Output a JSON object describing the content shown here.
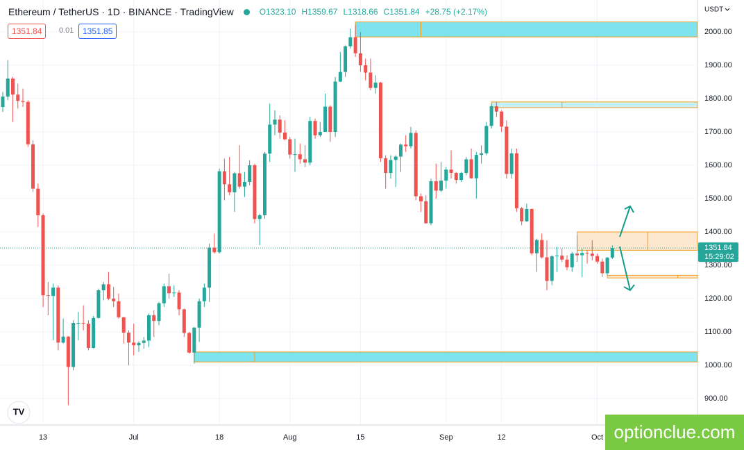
{
  "header": {
    "symbol": "Ethereum / TetherUS · 1D · BINANCE · TradingView",
    "ohlc": [
      "O1323.10",
      "H1359.67",
      "L1318.66",
      "C1351.84"
    ],
    "change": "+28.75 (+2.17%)"
  },
  "trade": {
    "sell": "1351.84",
    "spread": "0.01",
    "buy": "1351.85"
  },
  "axis": {
    "currency": "USDT",
    "price_label": "1351.84",
    "countdown": "15:29:02"
  },
  "watermark": "optionclue.com",
  "chart_data": {
    "type": "candlestick",
    "open": [
      1775,
      1806,
      1860,
      1812,
      1793,
      1790,
      1663,
      1530,
      1450,
      1210,
      1208,
      1233,
      1068,
      1086,
      995,
      1127,
      1127,
      1125,
      1052,
      1142,
      1225,
      1243,
      1200,
      1192,
      1144,
      1098,
      1068,
      1060,
      1067,
      1074,
      1150,
      1133,
      1186,
      1237,
      1216,
      1218,
      1168,
      1097,
      1038,
      1113,
      1192,
      1233,
      1353,
      1339,
      1582,
      1543,
      1519,
      1576,
      1536,
      1550,
      1600,
      1439,
      1450,
      1635,
      1722,
      1737,
      1698,
      1678,
      1632,
      1633,
      1618,
      1608,
      1733,
      1690,
      1700,
      1776,
      1700,
      1851,
      1880,
      1957,
      1984,
      1936,
      1900,
      1878,
      1832,
      1848,
      1621,
      1577,
      1616,
      1626,
      1662,
      1657,
      1697,
      1507,
      1492,
      1426,
      1552,
      1524,
      1554,
      1587,
      1577,
      1556,
      1577,
      1618,
      1561,
      1631,
      1636,
      1718,
      1777,
      1761,
      1716,
      1574,
      1636,
      1471,
      1432,
      1469,
      1336,
      1376,
      1324,
      1253,
      1327,
      1329,
      1317,
      1294,
      1335,
      1330,
      1337,
      1335,
      1328,
      1311,
      1276,
      1323.1
    ],
    "high": [
      1820,
      1915,
      1865,
      1845,
      1830,
      1795,
      1675,
      1545,
      1455,
      1250,
      1245,
      1240,
      1140,
      1088,
      1135,
      1160,
      1180,
      1135,
      1148,
      1230,
      1250,
      1280,
      1235,
      1215,
      1145,
      1105,
      1125,
      1072,
      1085,
      1155,
      1165,
      1190,
      1245,
      1275,
      1240,
      1225,
      1170,
      1100,
      1115,
      1200,
      1245,
      1365,
      1395,
      1590,
      1620,
      1625,
      1580,
      1660,
      1580,
      1615,
      1605,
      1455,
      1640,
      1785,
      1765,
      1750,
      1735,
      1685,
      1680,
      1665,
      1660,
      1745,
      1740,
      1730,
      1815,
      1780,
      1865,
      1940,
      1960,
      2010,
      2020,
      2000,
      1920,
      1920,
      1870,
      1850,
      1630,
      1630,
      1630,
      1665,
      1690,
      1715,
      1705,
      1515,
      1510,
      1560,
      1605,
      1610,
      1595,
      1645,
      1580,
      1580,
      1625,
      1650,
      1640,
      1660,
      1730,
      1785,
      1790,
      1765,
      1735,
      1650,
      1650,
      1475,
      1485,
      1470,
      1380,
      1395,
      1375,
      1330,
      1355,
      1350,
      1330,
      1340,
      1390,
      1350,
      1345,
      1375,
      1335,
      1320,
      1325,
      1359.67
    ],
    "low": [
      1760,
      1795,
      1730,
      1770,
      1775,
      1655,
      1520,
      1415,
      1175,
      1150,
      1075,
      1045,
      1065,
      880,
      985,
      1075,
      1105,
      1045,
      1050,
      1140,
      1195,
      1195,
      1175,
      1140,
      1065,
      1000,
      1030,
      1040,
      1050,
      1055,
      1085,
      1120,
      1175,
      1200,
      1205,
      1150,
      1085,
      1035,
      1005,
      1070,
      1175,
      1190,
      1335,
      1335,
      1495,
      1510,
      1460,
      1530,
      1505,
      1540,
      1425,
      1360,
      1440,
      1610,
      1690,
      1680,
      1675,
      1620,
      1580,
      1605,
      1595,
      1600,
      1680,
      1685,
      1700,
      1670,
      1685,
      1850,
      1865,
      1950,
      1925,
      1880,
      1855,
      1825,
      1815,
      1610,
      1530,
      1560,
      1535,
      1580,
      1640,
      1650,
      1495,
      1460,
      1425,
      1420,
      1500,
      1520,
      1530,
      1560,
      1545,
      1550,
      1570,
      1560,
      1500,
      1605,
      1630,
      1710,
      1745,
      1700,
      1560,
      1560,
      1460,
      1420,
      1430,
      1330,
      1280,
      1320,
      1225,
      1240,
      1280,
      1310,
      1285,
      1280,
      1310,
      1265,
      1305,
      1315,
      1305,
      1265,
      1270,
      1318.66
    ],
    "close": [
      1806,
      1860,
      1812,
      1793,
      1790,
      1663,
      1530,
      1450,
      1210,
      1208,
      1233,
      1068,
      1086,
      995,
      1127,
      1127,
      1125,
      1052,
      1142,
      1225,
      1243,
      1200,
      1192,
      1144,
      1098,
      1068,
      1060,
      1067,
      1074,
      1150,
      1133,
      1186,
      1237,
      1216,
      1218,
      1168,
      1097,
      1038,
      1113,
      1192,
      1233,
      1353,
      1339,
      1582,
      1543,
      1519,
      1576,
      1536,
      1550,
      1600,
      1439,
      1450,
      1635,
      1722,
      1737,
      1698,
      1678,
      1632,
      1633,
      1618,
      1608,
      1733,
      1690,
      1700,
      1776,
      1700,
      1851,
      1880,
      1957,
      1984,
      1936,
      1900,
      1878,
      1832,
      1848,
      1621,
      1577,
      1616,
      1626,
      1662,
      1657,
      1697,
      1507,
      1492,
      1426,
      1552,
      1524,
      1554,
      1587,
      1577,
      1556,
      1577,
      1618,
      1561,
      1631,
      1636,
      1718,
      1777,
      1761,
      1716,
      1574,
      1636,
      1471,
      1432,
      1469,
      1336,
      1376,
      1324,
      1253,
      1327,
      1329,
      1317,
      1294,
      1335,
      1330,
      1337,
      1335,
      1328,
      1311,
      1276,
      1323,
      1351.84
    ],
    "xlim": [
      -0.55,
      137.9
    ],
    "xticks": [
      {
        "value": 8,
        "label": "13"
      },
      {
        "value": 26,
        "label": "Jul"
      },
      {
        "value": 43,
        "label": "18"
      },
      {
        "value": 57,
        "label": "Aug"
      },
      {
        "value": 71,
        "label": "15"
      },
      {
        "value": 88,
        "label": "Sep"
      },
      {
        "value": 99,
        "label": "12"
      },
      {
        "value": 118,
        "label": "Oct"
      }
    ],
    "ylim": [
      820.83,
      2095.83
    ],
    "yticks": [
      {
        "value": 900,
        "label": "900.00"
      },
      {
        "value": 1000,
        "label": "1000.00"
      },
      {
        "value": 1100,
        "label": "1100.00"
      },
      {
        "value": 1200,
        "label": "1200.00"
      },
      {
        "value": 1300,
        "label": "1300.00"
      },
      {
        "value": 1400,
        "label": "1400.00"
      },
      {
        "value": 1500,
        "label": "1500.00"
      },
      {
        "value": 1600,
        "label": "1600.00"
      },
      {
        "value": 1700,
        "label": "1700.00"
      },
      {
        "value": 1800,
        "label": "1800.00"
      },
      {
        "value": 1900,
        "label": "1900.00"
      },
      {
        "value": 2000,
        "label": "2000.00"
      }
    ],
    "grid": true,
    "up_color": "#26a69a",
    "down_color": "#ef5350",
    "zones": [
      {
        "y": [
          1985,
          2030
        ],
        "x0": 70,
        "split": 83,
        "color": "#7fe3ee"
      },
      {
        "y": [
          1773,
          1790
        ],
        "x0": 97,
        "split": 111,
        "color": "#c9f1f5"
      },
      {
        "y": [
          1345,
          1400
        ],
        "x0": 114,
        "split": 128,
        "color": "#fde8cf"
      },
      {
        "y": [
          1262,
          1270
        ],
        "x0": 120,
        "split": 134,
        "color": "#fde8cf"
      },
      {
        "y": [
          1010,
          1040
        ],
        "x0": 38,
        "split": 50,
        "color": "#7fe3ee"
      }
    ]
  }
}
